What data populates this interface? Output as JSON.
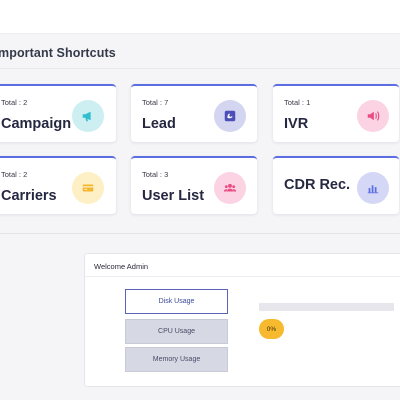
{
  "section": {
    "title": "mportant Shortcuts"
  },
  "cards": [
    {
      "total": "Total : 2",
      "label": "Campaign",
      "icon": "megaphone-icon",
      "icon_bg": "#cdeff2",
      "icon_color": "#2fbfcf"
    },
    {
      "total": "Total : 7",
      "label": "Lead",
      "icon": "phone-square-icon",
      "icon_bg": "#d4d5f0",
      "icon_color": "#4b4fb8"
    },
    {
      "total": "Total : 1",
      "label": "IVR",
      "icon": "speaker-icon",
      "icon_bg": "#fbd3e2",
      "icon_color": "#ea4d86"
    },
    {
      "total": "Total : 2",
      "label": "Carriers",
      "icon": "card-icon",
      "icon_bg": "#fdefc6",
      "icon_color": "#f5b62f"
    },
    {
      "total": "Total : 3",
      "label": "User List",
      "icon": "users-icon",
      "icon_bg": "#fbd3e2",
      "icon_color": "#ea4d86"
    },
    {
      "total": "",
      "label": "CDR Rec.",
      "icon": "bar-chart-icon",
      "icon_bg": "#d4d8f6",
      "icon_color": "#5b6ee1"
    }
  ],
  "welcome": {
    "title": "Welcome Admin",
    "buttons": [
      "Disk Usage",
      "CPU Usage",
      "Memory Usage"
    ],
    "active_button": 0,
    "progress_percent": 0,
    "percent_label": "0%"
  },
  "colors": {
    "accent": "#5b6ee1",
    "badge": "#f7b92d"
  }
}
